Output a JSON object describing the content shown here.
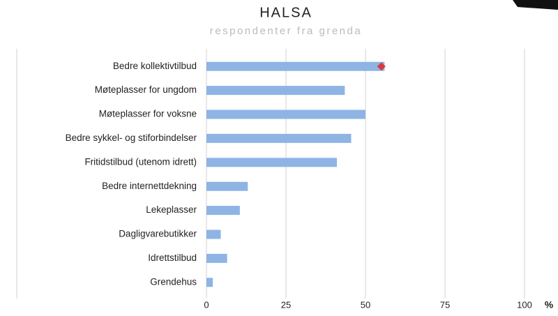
{
  "chart_data": {
    "type": "bar",
    "orientation": "horizontal",
    "title": "HALSA",
    "subtitle": "respondenter fra grenda",
    "xlabel": "%",
    "categories": [
      "Bedre kollektivtilbud",
      "Møteplasser for ungdom",
      "Møteplasser for voksne",
      "Bedre sykkel- og stiforbindelser",
      "Fritidstilbud (utenom idrett)",
      "Bedre internettdekning",
      "Lekeplasser",
      "Dagligvarebutikker",
      "Idrettstilbud",
      "Grendehus"
    ],
    "series": [
      {
        "color": "#8eb4e3",
        "values": [
          56,
          43.5,
          50,
          45.5,
          41,
          13,
          10.5,
          4.5,
          6.5,
          2
        ]
      },
      {
        "color": "#d9393c",
        "marker": "diamond",
        "values": [
          55,
          null,
          null,
          null,
          null,
          null,
          null,
          null,
          null,
          null
        ]
      }
    ],
    "xlim": [
      0,
      100
    ],
    "xticks": [
      0,
      25,
      50,
      75,
      100
    ],
    "grid": true
  }
}
